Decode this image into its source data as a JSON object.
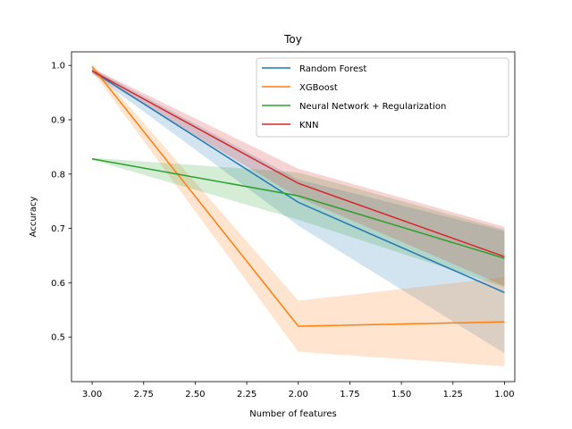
{
  "chart_data": {
    "type": "line",
    "title": "Toy",
    "xlabel": "Number of features",
    "ylabel": "Accuracy",
    "x": [
      3.0,
      2.0,
      1.0
    ],
    "xlim": [
      3.1,
      0.95
    ],
    "ylim": [
      0.418,
      1.025
    ],
    "xticks": [
      3.0,
      2.75,
      2.5,
      2.25,
      2.0,
      1.75,
      1.5,
      1.25,
      1.0
    ],
    "xtick_labels": [
      "3.00",
      "2.75",
      "2.50",
      "2.25",
      "2.00",
      "1.75",
      "1.50",
      "1.25",
      "1.00"
    ],
    "yticks": [
      0.5,
      0.6,
      0.7,
      0.8,
      0.9,
      1.0
    ],
    "ytick_labels": [
      "0.5",
      "0.6",
      "0.7",
      "0.8",
      "0.9",
      "1.0"
    ],
    "grid": false,
    "legend_position": "top-right",
    "series": [
      {
        "name": "Random Forest",
        "color": "#1f77b4",
        "values": [
          0.99,
          0.748,
          0.582
        ],
        "lower": [
          0.985,
          0.705,
          0.47
        ],
        "upper": [
          0.995,
          0.79,
          0.695
        ]
      },
      {
        "name": "XGBoost",
        "color": "#ff7f0e",
        "values": [
          0.998,
          0.52,
          0.528
        ],
        "lower": [
          0.99,
          0.473,
          0.446
        ],
        "upper": [
          1.003,
          0.567,
          0.61
        ]
      },
      {
        "name": "Neural Network + Regularization",
        "color": "#2ca02c",
        "values": [
          0.828,
          0.76,
          0.645
        ],
        "lower": [
          0.826,
          0.716,
          0.592
        ],
        "upper": [
          0.83,
          0.803,
          0.698
        ]
      },
      {
        "name": "KNN",
        "color": "#d62728",
        "values": [
          0.99,
          0.783,
          0.648
        ],
        "lower": [
          0.985,
          0.757,
          0.594
        ],
        "upper": [
          0.995,
          0.81,
          0.703
        ]
      }
    ]
  }
}
